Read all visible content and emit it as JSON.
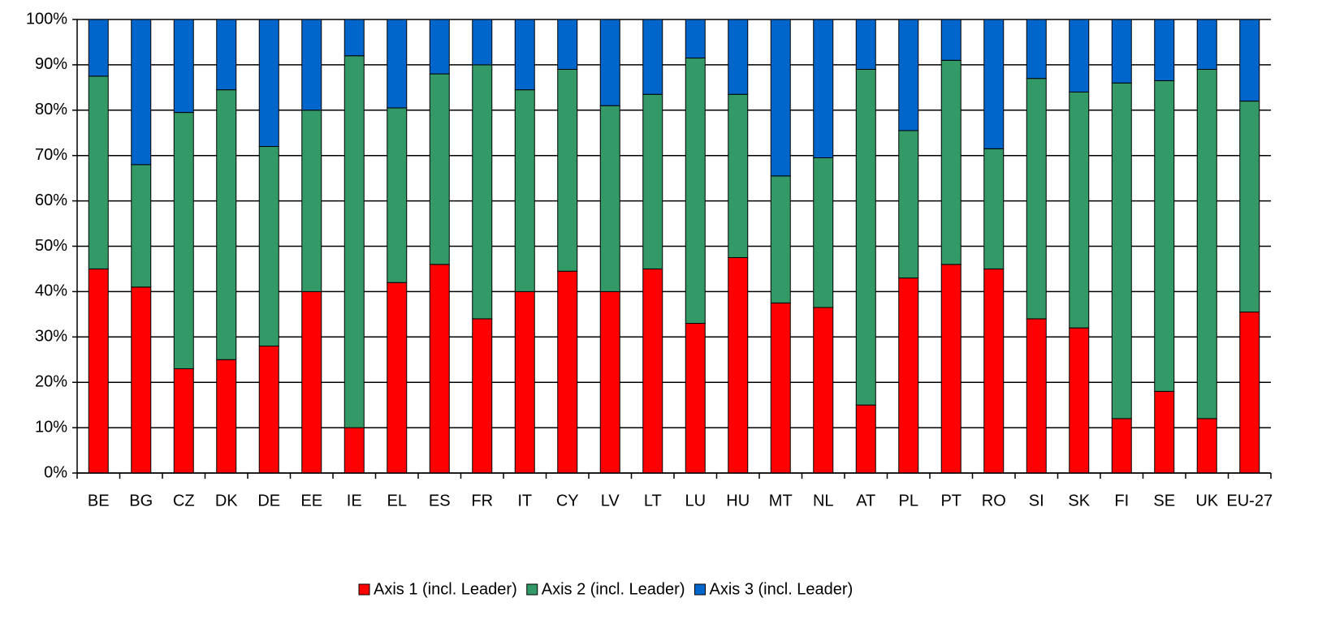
{
  "chart_data": {
    "type": "stacked_bar",
    "categories": [
      "BE",
      "BG",
      "CZ",
      "DK",
      "DE",
      "EE",
      "IE",
      "EL",
      "ES",
      "FR",
      "IT",
      "CY",
      "LV",
      "LT",
      "LU",
      "HU",
      "MT",
      "NL",
      "AT",
      "PL",
      "PT",
      "RO",
      "SI",
      "SK",
      "FI",
      "SE",
      "UK",
      "EU-27"
    ],
    "series": [
      {
        "name": "Axis 1 (incl. Leader)",
        "color": "#ff0000",
        "values": [
          45,
          41,
          23,
          25,
          28,
          40,
          10,
          42,
          46,
          34,
          40,
          44.5,
          40,
          45,
          33,
          47.5,
          37.5,
          36.5,
          15,
          43,
          46,
          45,
          34,
          32,
          12,
          18,
          12,
          35.5
        ]
      },
      {
        "name": "Axis 2 (incl. Leader)",
        "color": "#339966",
        "values": [
          42.5,
          27,
          56.5,
          59.5,
          44,
          40,
          82,
          38.5,
          42,
          56,
          44.5,
          44.5,
          41,
          38.5,
          58.5,
          36,
          28,
          33,
          74,
          32.5,
          45,
          26.5,
          53,
          52,
          74,
          68.5,
          77,
          46.5
        ]
      },
      {
        "name": "Axis 3 (incl. Leader)",
        "color": "#0066cc",
        "values": [
          12.5,
          32,
          20.5,
          15.5,
          28,
          20,
          8,
          19.5,
          12,
          10,
          15.5,
          11,
          19,
          16.5,
          8.5,
          16.5,
          34.5,
          30.5,
          11,
          24.5,
          9,
          28.5,
          13,
          16,
          14,
          13.5,
          11,
          18
        ]
      }
    ],
    "ylim": [
      0,
      100
    ],
    "yticks": [
      {
        "value": 0,
        "label": "0%"
      },
      {
        "value": 10,
        "label": "10%"
      },
      {
        "value": 20,
        "label": "20%"
      },
      {
        "value": 30,
        "label": "30%"
      },
      {
        "value": 40,
        "label": "40%"
      },
      {
        "value": 50,
        "label": "50%"
      },
      {
        "value": 60,
        "label": "60%"
      },
      {
        "value": 70,
        "label": "70%"
      },
      {
        "value": 80,
        "label": "80%"
      },
      {
        "value": 90,
        "label": "90%"
      },
      {
        "value": 100,
        "label": "100%"
      }
    ],
    "grid": true
  }
}
